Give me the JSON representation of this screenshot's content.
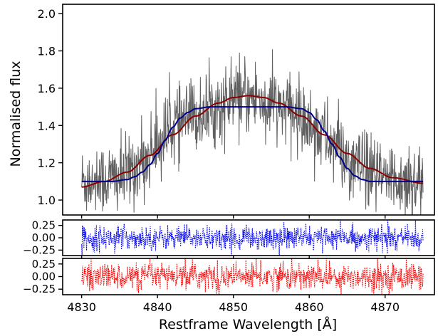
{
  "chart_data": [
    {
      "panel": "main",
      "type": "line",
      "title": "",
      "xlabel": "",
      "ylabel": "Normalised flux",
      "xlim": [
        4827.5,
        4876.5
      ],
      "ylim": [
        0.92,
        2.05
      ],
      "x_ticks": [
        4830,
        4840,
        4850,
        4860,
        4870
      ],
      "y_ticks": [
        1.0,
        1.2,
        1.4,
        1.6,
        1.8,
        2.0
      ],
      "y_tick_labels": [
        "1.0",
        "1.2",
        "1.4",
        "1.6",
        "1.8",
        "2.0"
      ],
      "grid": false,
      "colors": {
        "data": "#606060",
        "model_flat": "#00008b",
        "model_gauss": "#8b0000"
      },
      "series": [
        {
          "role": "noisy observed spectrum (gray)",
          "x_range": [
            4830,
            4875
          ],
          "profile_x": [
            4830,
            4835,
            4838,
            4840,
            4842,
            4845,
            4848,
            4851,
            4853,
            4856,
            4859,
            4861,
            4863,
            4866,
            4870,
            4875
          ],
          "profile_y": [
            1.1,
            1.12,
            1.2,
            1.3,
            1.4,
            1.45,
            1.5,
            1.55,
            1.55,
            1.5,
            1.45,
            1.38,
            1.3,
            1.18,
            1.11,
            1.1
          ],
          "noise_sigma": 0.1
        },
        {
          "role": "flat-topped model (blue)",
          "x": [
            4830,
            4834,
            4836,
            4837,
            4838,
            4839,
            4840,
            4841,
            4842,
            4843,
            4844,
            4845,
            4847,
            4850,
            4852,
            4855,
            4857,
            4859,
            4860,
            4861,
            4862,
            4863,
            4864,
            4865,
            4866,
            4867,
            4868,
            4870,
            4875
          ],
          "y": [
            1.1,
            1.1,
            1.11,
            1.125,
            1.15,
            1.19,
            1.25,
            1.32,
            1.39,
            1.44,
            1.47,
            1.49,
            1.5,
            1.5,
            1.5,
            1.5,
            1.5,
            1.49,
            1.47,
            1.43,
            1.37,
            1.3,
            1.23,
            1.17,
            1.13,
            1.11,
            1.1,
            1.1,
            1.1
          ]
        },
        {
          "role": "gaussian model (dark red)",
          "x": [
            4830,
            4833,
            4836,
            4839,
            4842,
            4845,
            4848,
            4850,
            4852,
            4854,
            4856,
            4859,
            4862,
            4865,
            4868,
            4871,
            4875
          ],
          "y": [
            1.07,
            1.1,
            1.15,
            1.24,
            1.35,
            1.45,
            1.52,
            1.55,
            1.56,
            1.55,
            1.52,
            1.45,
            1.35,
            1.25,
            1.17,
            1.12,
            1.09
          ]
        }
      ]
    },
    {
      "panel": "residual-1",
      "type": "line",
      "xlim": [
        4827.5,
        4876.5
      ],
      "ylim": [
        -0.36,
        0.36
      ],
      "y_ticks": [
        0.25,
        0.0,
        -0.25
      ],
      "y_tick_labels": [
        "0.25",
        "0.00",
        "−0.25"
      ],
      "grid": false,
      "colors": {
        "line": "#0000ff"
      },
      "series": [
        {
          "role": "residuals, dotted blue",
          "x_range": [
            4830,
            4875
          ],
          "mean": 0.0,
          "spread": 0.12
        }
      ]
    },
    {
      "panel": "residual-2",
      "type": "line",
      "xlabel": "Restframe Wavelength [Å]",
      "xlim": [
        4827.5,
        4876.5
      ],
      "ylim": [
        -0.36,
        0.36
      ],
      "x_ticks": [
        4830,
        4840,
        4850,
        4860,
        4870
      ],
      "x_tick_labels": [
        "4830",
        "4840",
        "4850",
        "4860",
        "4870"
      ],
      "y_ticks": [
        0.25,
        0.0,
        -0.25
      ],
      "y_tick_labels": [
        "0.25",
        "0.00",
        "−0.25"
      ],
      "grid": false,
      "colors": {
        "line": "#ff0000"
      },
      "series": [
        {
          "role": "residuals, dotted red",
          "x_range": [
            4830,
            4875
          ],
          "mean": 0.0,
          "spread": 0.13
        }
      ]
    }
  ]
}
